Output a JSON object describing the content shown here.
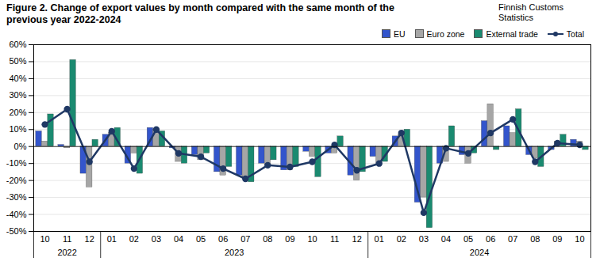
{
  "chart_data": {
    "type": "bar",
    "title": "Figure 2. Change of export values by month compared with the same month of the previous year 2022-2024",
    "source": "Finnish Customs Statistics",
    "categories": [
      "10",
      "11",
      "12",
      "01",
      "02",
      "03",
      "04",
      "05",
      "06",
      "07",
      "08",
      "09",
      "10",
      "11",
      "12",
      "01",
      "02",
      "03",
      "04",
      "05",
      "06",
      "07",
      "08",
      "09",
      "10"
    ],
    "x_groups": [
      {
        "label": "2022",
        "count": 3
      },
      {
        "label": "2023",
        "count": 12
      },
      {
        "label": "2024",
        "count": 10
      }
    ],
    "series": [
      {
        "name": "EU",
        "type": "bar",
        "color": "#3355cc",
        "values": [
          9,
          1,
          -16,
          7,
          -10,
          11,
          -1,
          -5,
          -15,
          -17,
          -10,
          -14,
          -3,
          -4,
          -17,
          -6,
          6,
          -33,
          -10,
          -5,
          15,
          12,
          -5,
          -2,
          4
        ]
      },
      {
        "name": "Euro zone",
        "type": "bar",
        "color": "#a6a6a6",
        "values": [
          3,
          -1,
          -24,
          8,
          -4,
          10,
          -9,
          -8,
          -17,
          -19,
          -11,
          -14,
          -6,
          -4,
          -20,
          -10,
          7,
          -30,
          -9,
          -10,
          25,
          8,
          -7,
          3,
          3
        ]
      },
      {
        "name": "External trade",
        "type": "bar",
        "color": "#1a8a70",
        "values": [
          19,
          51,
          4,
          11,
          -16,
          9,
          -10,
          -4,
          -12,
          -21,
          -8,
          -12,
          -18,
          6,
          -15,
          -9,
          10,
          -48,
          12,
          -4,
          -2,
          22,
          -12,
          7,
          -2
        ]
      },
      {
        "name": "Total",
        "type": "line",
        "color": "#1f3864",
        "marker": "dot",
        "values": [
          13,
          22,
          -9,
          9,
          -13,
          10,
          -4,
          -6,
          -13,
          -19,
          -11,
          -12,
          -9,
          1,
          -14,
          -10,
          8,
          -39,
          -1,
          -4,
          8,
          16,
          -9,
          2,
          1
        ]
      }
    ],
    "ylim": [
      -50,
      60
    ],
    "yticks": [
      {
        "value": -50,
        "label": "-50%"
      },
      {
        "value": -40,
        "label": "-40%"
      },
      {
        "value": -30,
        "label": "-30%"
      },
      {
        "value": -20,
        "label": "-20%"
      },
      {
        "value": -10,
        "label": "-10%"
      },
      {
        "value": 0,
        "label": "0%"
      },
      {
        "value": 10,
        "label": "10%"
      },
      {
        "value": 20,
        "label": "20%"
      },
      {
        "value": 30,
        "label": "30%"
      },
      {
        "value": 40,
        "label": "40%"
      },
      {
        "value": 50,
        "label": "50%"
      },
      {
        "value": 60,
        "label": "60%"
      }
    ],
    "grid": true,
    "legend": "top-right"
  }
}
